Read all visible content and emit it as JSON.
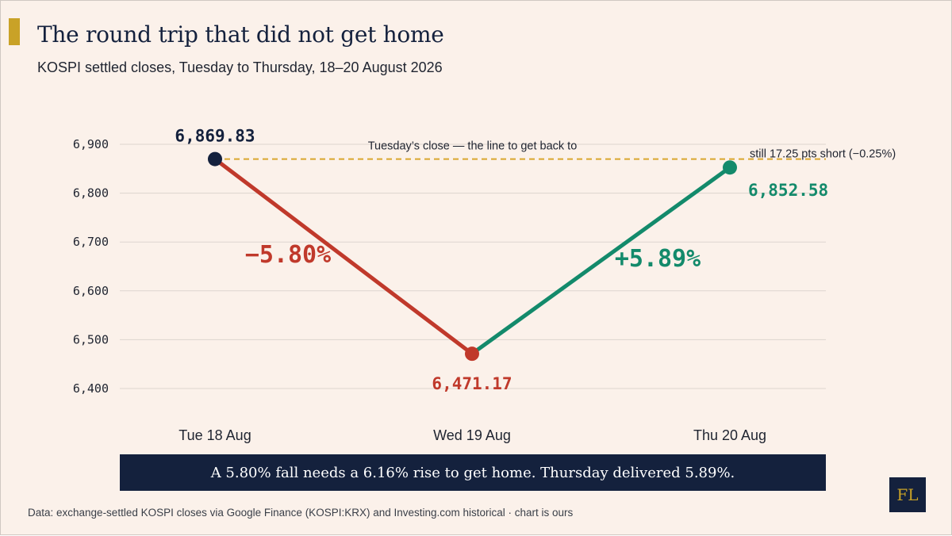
{
  "title": "The round trip that did not get home",
  "subtitle": "KOSPI settled closes, Tuesday to Thursday, 18–20 August 2026",
  "colors": {
    "background": "#fbf1ea",
    "navy": "#14213d",
    "fall_red": "#c0392b",
    "rise_green": "#138a6b",
    "reference_gold": "#d9a62e"
  },
  "chart_data": {
    "type": "line",
    "categories": [
      "Tue 18 Aug",
      "Wed 19 Aug",
      "Thu 20 Aug"
    ],
    "values": [
      6869.83,
      6471.17,
      6852.58
    ],
    "value_labels": [
      "6,869.83",
      "6,471.17",
      "6,852.58"
    ],
    "ylim": [
      6400,
      6900
    ],
    "yticks": [
      6400,
      6500,
      6600,
      6700,
      6800,
      6900
    ],
    "ytick_labels": [
      "6,400",
      "6,500",
      "6,600",
      "6,700",
      "6,800",
      "6,900"
    ],
    "grid": true,
    "segments": [
      {
        "label": "−5.80%",
        "color": "#c0392b"
      },
      {
        "label": "+5.89%",
        "color": "#138a6b"
      }
    ],
    "reference_line": {
      "value": 6869.83,
      "label": "Tuesday’s close — the line to get back to"
    },
    "annotations": {
      "shortfall": "still 17.25 pts short (−0.25%)"
    }
  },
  "callout": "A 5.80% fall needs a 6.16% rise to get home. Thursday delivered 5.89%.",
  "logo_text": "FL",
  "source": "Data: exchange-settled KOSPI closes via Google Finance (KOSPI:KRX) and Investing.com historical · chart is ours"
}
